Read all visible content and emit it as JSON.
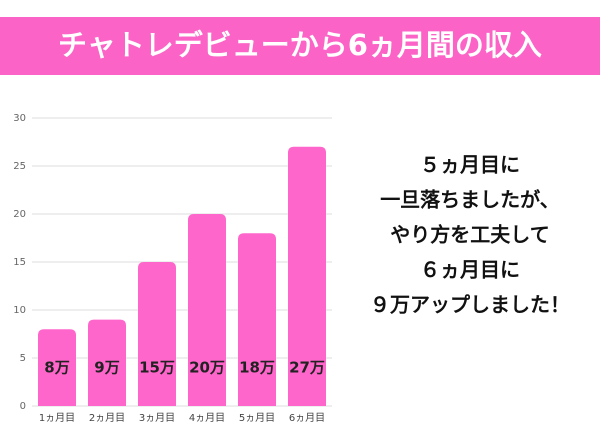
{
  "chart_data": {
    "type": "bar",
    "title": "チャトレデビューから6ヵ月間の収入",
    "categories": [
      "1ヵ月目",
      "2ヵ月目",
      "3ヵ月目",
      "4ヵ月目",
      "5ヵ月目",
      "6ヵ月目"
    ],
    "values": [
      8,
      9,
      15,
      20,
      18,
      27
    ],
    "value_labels": [
      "8万",
      "9万",
      "15万",
      "20万",
      "18万",
      "27万"
    ],
    "color": "#ff66cc",
    "ylim": [
      0,
      30
    ],
    "yticks": [
      0,
      5,
      10,
      15,
      20,
      25,
      30
    ],
    "grid": true,
    "annotations": [
      "５ヵ月目に",
      "一旦落ちましたが、",
      "やり方を工夫して",
      "６ヵ月目に",
      "９万アップしました！"
    ]
  }
}
